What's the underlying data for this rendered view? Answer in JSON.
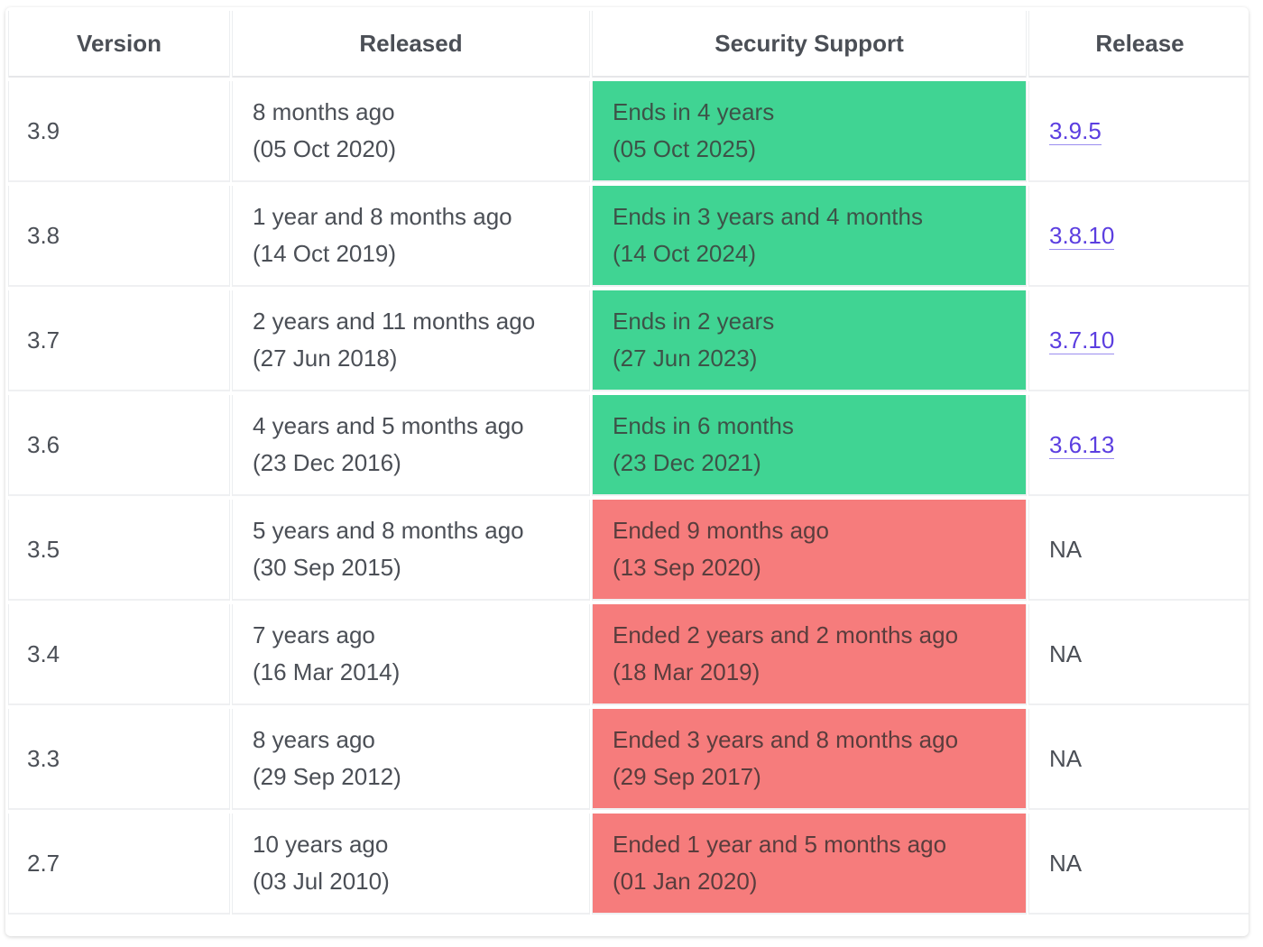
{
  "table": {
    "headers": [
      "Version",
      "Released",
      "Security Support",
      "Release"
    ],
    "rows": [
      {
        "version": "3.9",
        "released": "8 months ago",
        "released_date": "(05 Oct 2020)",
        "support": "Ends in 4 years",
        "support_date": "(05 Oct 2025)",
        "status": "supported",
        "release": "3.9.5",
        "release_is_link": true
      },
      {
        "version": "3.8",
        "released": "1 year and 8 months ago",
        "released_date": "(14 Oct 2019)",
        "support": "Ends in 3 years and 4 months",
        "support_date": "(14 Oct 2024)",
        "status": "supported",
        "release": "3.8.10",
        "release_is_link": true
      },
      {
        "version": "3.7",
        "released": "2 years and 11 months ago",
        "released_date": "(27 Jun 2018)",
        "support": "Ends in 2 years",
        "support_date": "(27 Jun 2023)",
        "status": "supported",
        "release": "3.7.10",
        "release_is_link": true
      },
      {
        "version": "3.6",
        "released": "4 years and 5 months ago",
        "released_date": "(23 Dec 2016)",
        "support": "Ends in 6 months",
        "support_date": "(23 Dec 2021)",
        "status": "supported",
        "release": "3.6.13",
        "release_is_link": true
      },
      {
        "version": "3.5",
        "released": "5 years and 8 months ago",
        "released_date": "(30 Sep 2015)",
        "support": "Ended 9 months ago",
        "support_date": "(13 Sep 2020)",
        "status": "ended",
        "release": "NA",
        "release_is_link": false
      },
      {
        "version": "3.4",
        "released": "7 years ago",
        "released_date": "(16 Mar 2014)",
        "support": "Ended 2 years and 2 months ago",
        "support_date": "(18 Mar 2019)",
        "status": "ended",
        "release": "NA",
        "release_is_link": false
      },
      {
        "version": "3.3",
        "released": "8 years ago",
        "released_date": "(29 Sep 2012)",
        "support": "Ended 3 years and 8 months ago",
        "support_date": "(29 Sep 2017)",
        "status": "ended",
        "release": "NA",
        "release_is_link": false
      },
      {
        "version": "2.7",
        "released": "10 years ago",
        "released_date": "(03 Jul 2010)",
        "support": "Ended 1 year and 5 months ago",
        "support_date": "(01 Jan 2020)",
        "status": "ended",
        "release": "NA",
        "release_is_link": false
      }
    ]
  },
  "colors": {
    "supported": "#40d493",
    "ended": "#f67c7c",
    "link": "#5b3ee0",
    "text": "#4b4f56"
  }
}
